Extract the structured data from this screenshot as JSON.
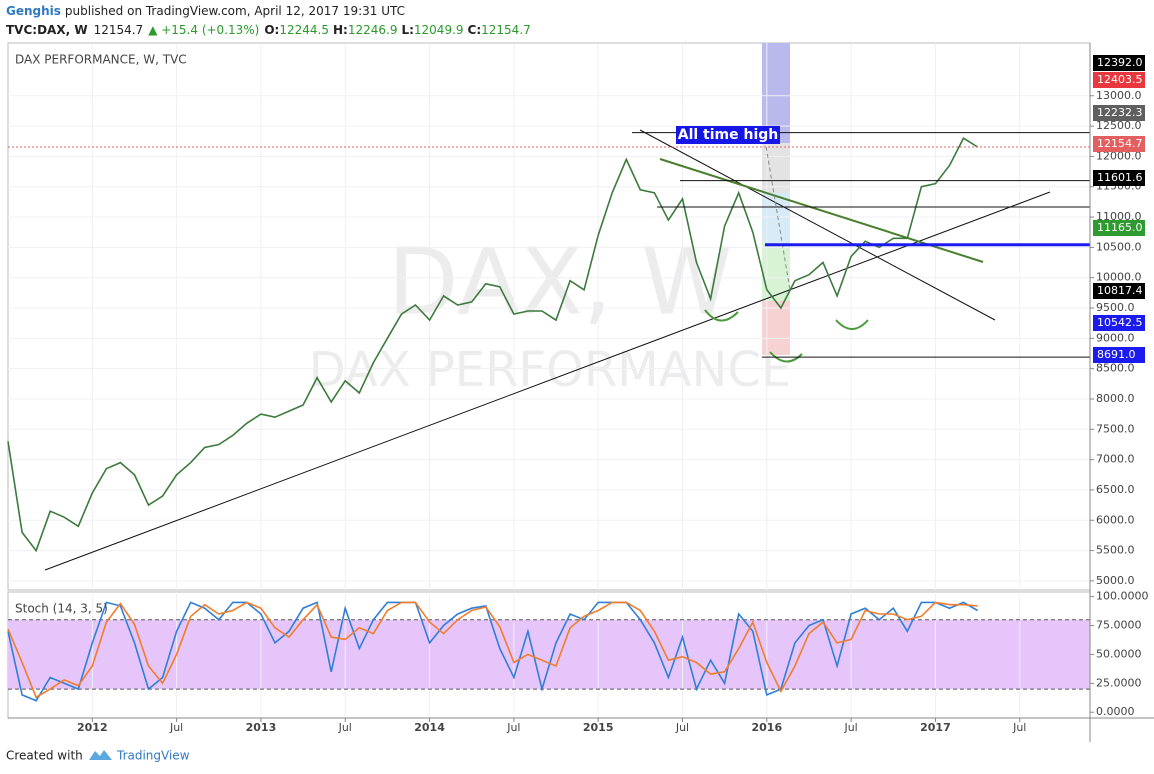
{
  "header": {
    "author": "Genghis",
    "published": "published on TradingView.com, April 12, 2017 19:31 UTC",
    "symbol": "TVC:DAX, W",
    "last": "12154.7",
    "change": "▲ +15.4 (+0.13%)",
    "ohlc": [
      {
        "key": "O:",
        "value": "12244.5"
      },
      {
        "key": "H:",
        "value": "12246.9"
      },
      {
        "key": "L:",
        "value": "12049.9"
      },
      {
        "key": "C:",
        "value": "12154.7"
      }
    ]
  },
  "chart_data": [
    {
      "type": "line",
      "title": "DAX PERFORMANCE, W, TVC",
      "watermark": "DAX, W",
      "watermark_subtitle": "DAX PERFORMANCE",
      "annotation": "All time high",
      "x": [
        "2011-07",
        "2011-08",
        "2011-09",
        "2011-10",
        "2011-11",
        "2011-12",
        "2012-01",
        "2012-02",
        "2012-03",
        "2012-04",
        "2012-05",
        "2012-06",
        "2012-07",
        "2012-08",
        "2012-09",
        "2012-10",
        "2012-11",
        "2012-12",
        "2013-01",
        "2013-02",
        "2013-03",
        "2013-04",
        "2013-05",
        "2013-06",
        "2013-07",
        "2013-08",
        "2013-09",
        "2013-10",
        "2013-11",
        "2013-12",
        "2014-01",
        "2014-02",
        "2014-03",
        "2014-04",
        "2014-05",
        "2014-06",
        "2014-07",
        "2014-08",
        "2014-09",
        "2014-10",
        "2014-11",
        "2014-12",
        "2015-01",
        "2015-02",
        "2015-03",
        "2015-04",
        "2015-05",
        "2015-06",
        "2015-07",
        "2015-08",
        "2015-09",
        "2015-10",
        "2015-11",
        "2015-12",
        "2016-01",
        "2016-02",
        "2016-03",
        "2016-04",
        "2016-05",
        "2016-06",
        "2016-07",
        "2016-08",
        "2016-09",
        "2016-10",
        "2016-11",
        "2016-12",
        "2017-01",
        "2017-02",
        "2017-03",
        "2017-04"
      ],
      "series": [
        {
          "color": "#3d7a3d",
          "values": [
            7300,
            5800,
            5500,
            6150,
            6050,
            5900,
            6450,
            6850,
            6950,
            6750,
            6250,
            6400,
            6750,
            6950,
            7200,
            7250,
            7400,
            7600,
            7750,
            7700,
            7800,
            7900,
            8350,
            7950,
            8300,
            8100,
            8600,
            9000,
            9400,
            9550,
            9300,
            9700,
            9550,
            9600,
            9900,
            9850,
            9400,
            9450,
            9450,
            9300,
            9950,
            9800,
            10700,
            11400,
            11950,
            11450,
            11400,
            10950,
            11300,
            10250,
            9650,
            10850,
            11400,
            10750,
            9800,
            9500,
            9950,
            10050,
            10250,
            9700,
            10350,
            10600,
            10500,
            10650,
            10650,
            11500,
            11550,
            11850,
            12300,
            12155
          ]
        }
      ],
      "xlim": [
        "2011-07",
        "2017-12"
      ],
      "xticks": [
        {
          "value": "2012-01",
          "label": "2012"
        },
        {
          "value": "2012-07",
          "label": "Jul"
        },
        {
          "value": "2013-01",
          "label": "2013"
        },
        {
          "value": "2013-07",
          "label": "Jul"
        },
        {
          "value": "2014-01",
          "label": "2014"
        },
        {
          "value": "2014-07",
          "label": "Jul"
        },
        {
          "value": "2015-01",
          "label": "2015"
        },
        {
          "value": "2015-07",
          "label": "Jul"
        },
        {
          "value": "2016-01",
          "label": "2016"
        },
        {
          "value": "2016-07",
          "label": "Jul"
        },
        {
          "value": "2017-01",
          "label": "2017"
        },
        {
          "value": "2017-07",
          "label": "Jul"
        }
      ],
      "ylim": [
        4850,
        13870
      ],
      "yticks": [
        {
          "value": 5000,
          "label": "5000.0"
        },
        {
          "value": 5500,
          "label": "5500.0"
        },
        {
          "value": 6000,
          "label": "6000.0"
        },
        {
          "value": 6500,
          "label": "6500.0"
        },
        {
          "value": 7000,
          "label": "7000.0"
        },
        {
          "value": 7500,
          "label": "7500.0"
        },
        {
          "value": 8000,
          "label": "8000.0"
        },
        {
          "value": 8500,
          "label": "8500.0"
        },
        {
          "value": 9000,
          "label": "9000.0"
        },
        {
          "value": 9500,
          "label": "9500.0"
        },
        {
          "value": 10000,
          "label": "10000.0"
        },
        {
          "value": 10500,
          "label": "10500.0"
        },
        {
          "value": 11000,
          "label": "11000.0"
        },
        {
          "value": 11500,
          "label": "11500.0"
        },
        {
          "value": 12000,
          "label": "12000.0"
        },
        {
          "value": 12500,
          "label": "12500.0"
        },
        {
          "value": 13000,
          "label": "13000.0"
        }
      ],
      "price_tags": [
        {
          "value": 12392,
          "label": "12392.0",
          "color": "#000000"
        },
        {
          "value": 12403.5,
          "label": "12403.5",
          "color": "#e8383d"
        },
        {
          "value": 12232.3,
          "label": "12232.3",
          "color": "#5f5f5f"
        },
        {
          "value": 12154.7,
          "label": "12154.7",
          "color": "#e46060"
        },
        {
          "value": 11601.6,
          "label": "11601.6",
          "color": "#000000"
        },
        {
          "value": 11165,
          "label": "11165.0",
          "color": "#2f9a2f"
        },
        {
          "value": 10817.4,
          "label": "10817.4",
          "color": "#000000"
        },
        {
          "value": 10542.5,
          "label": "10542.5",
          "color": "#1b1bf0"
        },
        {
          "value": 8691,
          "label": "8691.0",
          "color": "#1b1bf0"
        }
      ],
      "grid": true
    },
    {
      "type": "line",
      "title": "Stoch (14, 3, 5)",
      "series": [
        {
          "color": "#2f7fd6",
          "values": [
            70,
            15,
            10,
            30,
            25,
            20,
            60,
            95,
            92,
            60,
            20,
            30,
            70,
            95,
            90,
            80,
            95,
            95,
            85,
            60,
            70,
            90,
            95,
            35,
            90,
            55,
            80,
            95,
            95,
            95,
            60,
            75,
            85,
            90,
            92,
            55,
            30,
            70,
            20,
            60,
            85,
            80,
            95,
            95,
            95,
            80,
            60,
            30,
            65,
            20,
            45,
            25,
            85,
            70,
            15,
            20,
            60,
            75,
            80,
            40,
            85,
            90,
            80,
            90,
            70,
            95,
            95,
            90,
            95,
            88
          ]
        },
        {
          "color": "#f07d2c",
          "values": [
            72,
            43,
            13,
            20,
            28,
            23,
            40,
            78,
            94,
            76,
            40,
            25,
            50,
            83,
            93,
            85,
            88,
            95,
            90,
            73,
            65,
            80,
            93,
            65,
            63,
            73,
            68,
            88,
            95,
            95,
            78,
            68,
            80,
            88,
            91,
            74,
            43,
            50,
            45,
            40,
            73,
            83,
            88,
            95,
            95,
            88,
            70,
            45,
            48,
            43,
            33,
            35,
            55,
            78,
            43,
            18,
            40,
            68,
            78,
            60,
            63,
            88,
            85,
            85,
            80,
            83,
            95,
            93,
            93,
            92
          ]
        }
      ],
      "bands": [
        20,
        80
      ],
      "band_color": "#e6c6fa",
      "ylim": [
        -5,
        104
      ],
      "yticks": [
        {
          "value": 0,
          "label": "0.0000"
        },
        {
          "value": 25,
          "label": "25.0000"
        },
        {
          "value": 50,
          "label": "50.0000"
        },
        {
          "value": 75,
          "label": "75.0000"
        },
        {
          "value": 100,
          "label": "100.0000"
        }
      ]
    }
  ],
  "footer": {
    "created": "Created with",
    "brand": "TradingView"
  }
}
